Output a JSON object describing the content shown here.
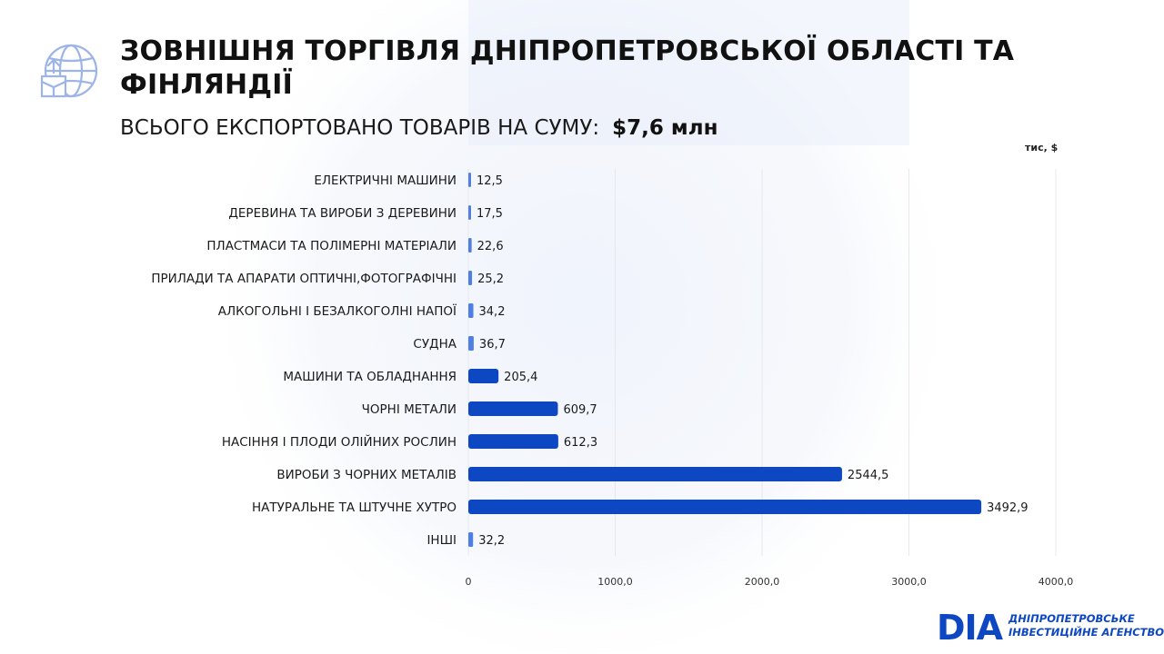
{
  "header": {
    "title": "ЗОВНІШНЯ ТОРГІВЛЯ ДНІПРОПЕТРОВСЬКОЇ ОБЛАСТІ ТА ФІНЛЯНДІЇ",
    "subtitle_label": "ВСЬОГО ЕКСПОРТОВАНО ТОВАРІВ НА СУМУ:",
    "subtitle_total": "$7,6 млн"
  },
  "logo": {
    "mark": "DIA",
    "line1": "ДНІПРОПЕТРОВСЬКЕ",
    "line2": "ІНВЕСТИЦІЙНЕ АГЕНСТВО"
  },
  "colors": {
    "bar": "#0d47c2",
    "bar_small": "#4f7fe0",
    "grid": "#e6e8ee",
    "accent": "#0d47c2"
  },
  "icons": [
    "globe-export-icon",
    "dia-logo-icon"
  ],
  "chart_data": {
    "type": "bar",
    "orientation": "horizontal",
    "unit_label": "тис, $",
    "categories": [
      "ЕЛЕКТРИЧНІ МАШИНИ",
      "ДЕРЕВИНА ТА ВИРОБИ З ДЕРЕВИНИ",
      "ПЛАСТМАСИ ТА ПОЛІМЕРНІ МАТЕРІАЛИ",
      "ПРИЛАДИ ТА АПАРАТИ ОПТИЧНІ,ФОТОГРАФІЧНІ",
      "АЛКОГОЛЬНІ І БЕЗАЛКОГОЛНІ НАПОЇ",
      "СУДНА",
      "МАШИНИ ТА ОБЛАДНАННЯ",
      "ЧОРНІ МЕТАЛИ",
      "НАСІННЯ І ПЛОДИ ОЛІЙНИХ РОСЛИН",
      "ВИРОБИ З ЧОРНИХ МЕТАЛІВ",
      "НАТУРАЛЬНЕ ТА ШТУЧНЕ ХУТРО",
      "ІНШІ"
    ],
    "values": [
      12.5,
      17.5,
      22.6,
      25.2,
      34.2,
      36.7,
      205.4,
      609.7,
      612.3,
      2544.5,
      3492.9,
      32.2
    ],
    "value_labels": [
      "12,5",
      "17,5",
      "22,6",
      "25,2",
      "34,2",
      "36,7",
      "205,4",
      "609,7",
      "612,3",
      "2544,5",
      "3492,9",
      "32,2"
    ],
    "xlim": [
      0,
      4000
    ],
    "xticks": [
      0,
      1000,
      2000,
      3000,
      4000
    ],
    "xtick_labels": [
      "0",
      "1000,0",
      "2000,0",
      "3000,0",
      "4000,0"
    ],
    "grid": true
  }
}
